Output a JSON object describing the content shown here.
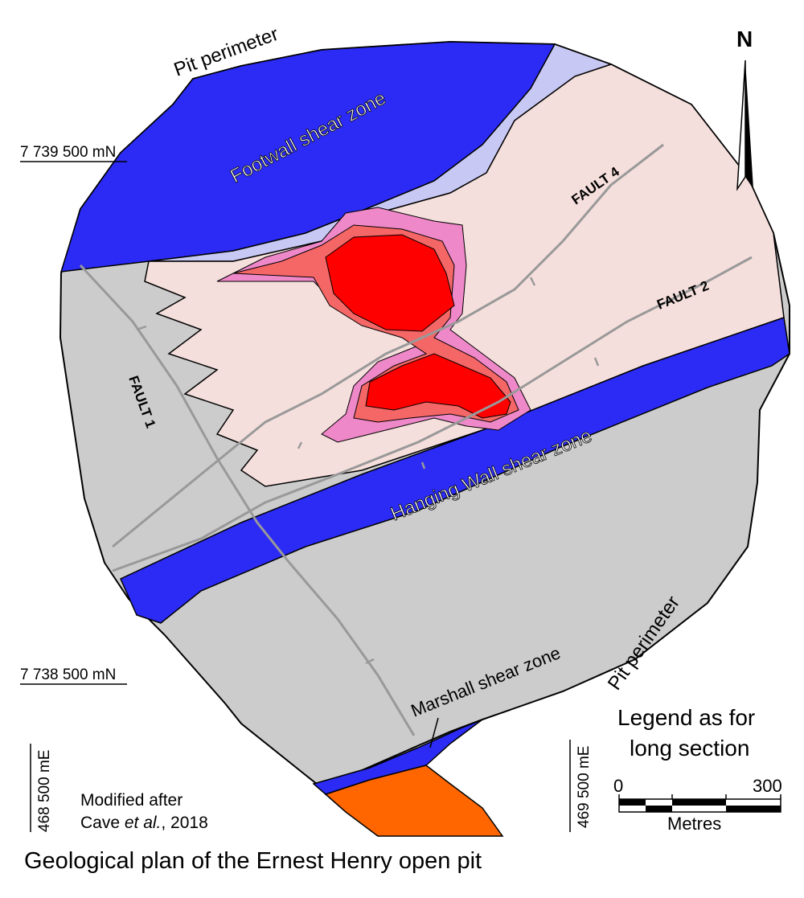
{
  "title": "Geological plan of the Ernest Henry open pit",
  "credit": {
    "line1": "Modified after",
    "line2_prefix": "Cave ",
    "line2_italic": "et al.",
    "line2_suffix": ", 2018"
  },
  "north_label": "N",
  "legend_note": {
    "line1": "Legend as for",
    "line2": "long section"
  },
  "scale_bar": {
    "start": "0",
    "end": "300",
    "unit": "Metres"
  },
  "grid_labels": {
    "north_top": "7 739 500 mN",
    "north_bottom": "7 738 500 mN",
    "east_left": "468 500 mE",
    "east_right": "469 500 mE"
  },
  "map_labels": {
    "pit_perimeter_top": "Pit perimeter",
    "pit_perimeter_right": "Pit perimeter",
    "footwall": "Footwall shear zone",
    "hanging_wall": "Hanging Wall shear zone",
    "marshall": "Marshall shear zone",
    "fault1": "FAULT 1",
    "fault2": "FAULT 2",
    "fault4": "FAULT 4"
  },
  "colors": {
    "pit_gray": "#cccccc",
    "shear_zone_blue": "#2b2bf5",
    "lavender": "#c8c8f5",
    "pale_pink": "#f5dfdc",
    "ore_pink": "#ee88c8",
    "ore_salmon": "#f56666",
    "ore_red": "#ff0000",
    "orange": "#ff6600",
    "fault_gray": "#999999"
  }
}
